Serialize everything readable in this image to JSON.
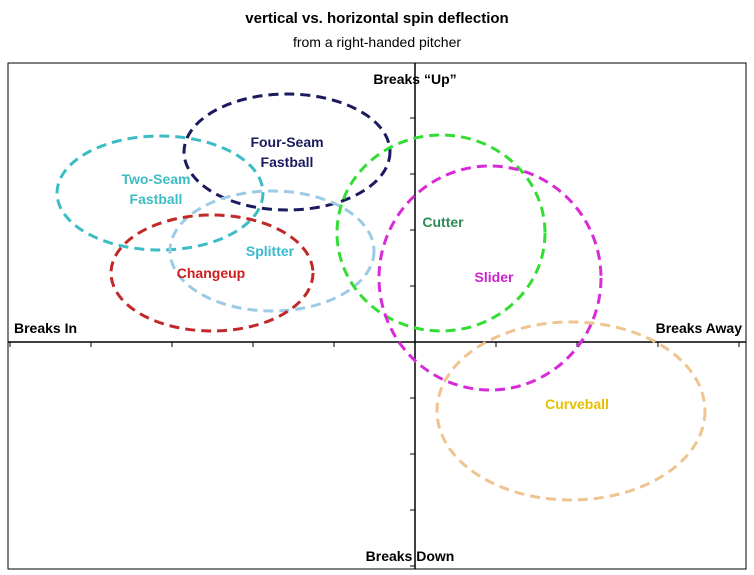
{
  "title": "vertical vs. horizontal spin deflection",
  "subtitle": "from a right-handed pitcher",
  "axes": {
    "top": "Breaks “Up”",
    "bottom": "Breaks Down",
    "left": "Breaks In",
    "right": "Breaks Away"
  },
  "pitches": [
    {
      "key": "four_seam",
      "line1": "Four-Seam",
      "line2": "Fastball",
      "color": "#1a1a5e"
    },
    {
      "key": "two_seam",
      "line1": "Two-Seam",
      "line2": "Fastball",
      "color": "#3cbcc4"
    },
    {
      "key": "splitter",
      "line1": "Splitter",
      "line2": "",
      "color": "#9ccbe6"
    },
    {
      "key": "changeup",
      "line1": "Changeup",
      "line2": "",
      "color": "#c0282a"
    },
    {
      "key": "cutter",
      "line1": "Cutter",
      "line2": "",
      "color": "#33dd33"
    },
    {
      "key": "slider",
      "line1": "Slider",
      "line2": "",
      "color": "#d82ad8"
    },
    {
      "key": "curveball",
      "line1": "Curveball",
      "line2": "",
      "color": "#f0c490"
    }
  ],
  "label_colors": {
    "four_seam": "#1a1a5e",
    "two_seam": "#3cbcc4",
    "splitter": "#39b8d0",
    "changeup": "#cc1e1e",
    "cutter": "#2e8b57",
    "slider": "#cc22cc",
    "curveball": "#e6c000"
  }
}
